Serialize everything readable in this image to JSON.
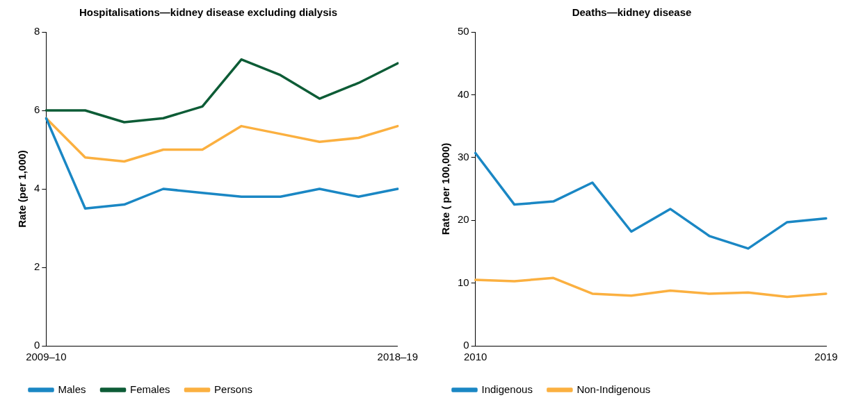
{
  "chart_data": [
    {
      "type": "line",
      "title": "Hospitalisations—kidney disease excluding dialysis",
      "ylabel": "Rate (per 1,000)",
      "categories": [
        "2009–10",
        null,
        null,
        null,
        null,
        null,
        null,
        null,
        null,
        "2018–19"
      ],
      "series": [
        {
          "name": "Males",
          "color": "#1a87c4",
          "values": [
            5.8,
            3.5,
            3.6,
            4.0,
            3.9,
            3.8,
            3.8,
            4.0,
            3.8,
            4.0
          ]
        },
        {
          "name": "Females",
          "color": "#0d5c36",
          "values": [
            6.0,
            6.0,
            5.7,
            5.8,
            6.1,
            7.3,
            6.9,
            6.3,
            6.7,
            7.2
          ]
        },
        {
          "name": "Persons",
          "color": "#fbb040",
          "values": [
            5.8,
            4.8,
            4.7,
            5.0,
            5.0,
            5.6,
            5.4,
            5.2,
            5.3,
            5.6
          ]
        }
      ],
      "ylim": [
        0,
        8
      ],
      "yticks": [
        0,
        2,
        4,
        6,
        8
      ],
      "grid": false,
      "legend": "bottom",
      "marker": "none",
      "line_style": "solid"
    },
    {
      "type": "line",
      "title": "Deaths—kidney disease",
      "ylabel": "Rate ( per 100,000)",
      "categories": [
        "2010",
        null,
        null,
        null,
        null,
        null,
        null,
        null,
        null,
        "2019"
      ],
      "series": [
        {
          "name": "Indigenous",
          "color": "#1a87c4",
          "values": [
            30.7,
            22.5,
            23.0,
            26.0,
            18.2,
            21.8,
            17.5,
            15.5,
            19.7,
            20.3
          ]
        },
        {
          "name": "Non-Indigenous",
          "color": "#fbb040",
          "values": [
            10.5,
            10.3,
            10.8,
            8.3,
            8.0,
            8.8,
            8.3,
            8.5,
            7.8,
            8.3
          ]
        }
      ],
      "ylim": [
        0,
        50
      ],
      "yticks": [
        0,
        10,
        20,
        30,
        40,
        50
      ],
      "grid": false,
      "legend": "bottom",
      "marker": "none",
      "line_style": "solid"
    }
  ]
}
